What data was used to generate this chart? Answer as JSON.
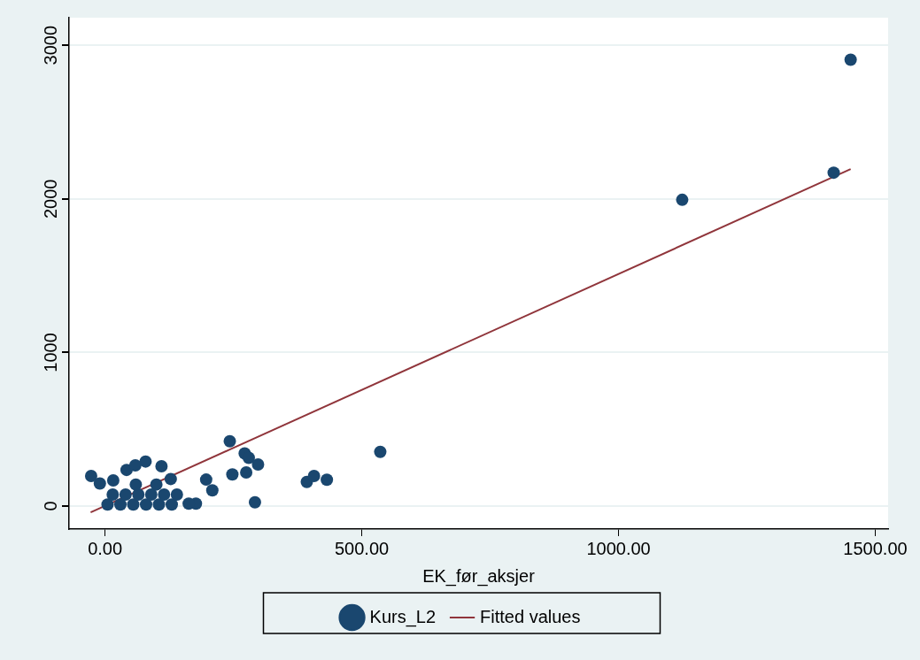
{
  "chart_data": {
    "type": "scatter",
    "xlabel": "EK_før_aksjer",
    "xlim": [
      -70,
      1525
    ],
    "ylim": [
      -150,
      3180
    ],
    "xticks": [
      {
        "value": 0,
        "label": "0.00"
      },
      {
        "value": 500,
        "label": "500.00"
      },
      {
        "value": 1000,
        "label": "1000.00"
      },
      {
        "value": 1500,
        "label": "1500.00"
      }
    ],
    "yticks": [
      0,
      1000,
      2000,
      3000
    ],
    "grid": "y",
    "legend": "bottom",
    "marker": "circle",
    "series": [
      {
        "name": "Kurs_L2",
        "color": "#1a476f",
        "x": [
          -27,
          243,
          272,
          280,
          298,
          248,
          275,
          292,
          393,
          407,
          432,
          79,
          110,
          197,
          209,
          177,
          163,
          128,
          42,
          59,
          16,
          -10,
          536,
          1124,
          1419,
          1452,
          5,
          30,
          55,
          80,
          105,
          130,
          15,
          40,
          65,
          90,
          115,
          140,
          60,
          100
        ],
        "values": [
          196,
          422,
          343,
          314,
          271,
          206,
          219,
          24,
          157,
          196,
          171,
          290,
          259,
          172,
          102,
          16,
          16,
          176,
          235,
          265,
          167,
          147,
          353,
          1994,
          2171,
          2906,
          10,
          10,
          10,
          10,
          10,
          10,
          75,
          75,
          75,
          75,
          75,
          75,
          140,
          140
        ]
      },
      {
        "name": "Fitted values",
        "color": "#90353b",
        "type": "line",
        "marker": "none",
        "x": [
          -28,
          1452
        ],
        "values": [
          -41,
          2194
        ]
      }
    ]
  }
}
